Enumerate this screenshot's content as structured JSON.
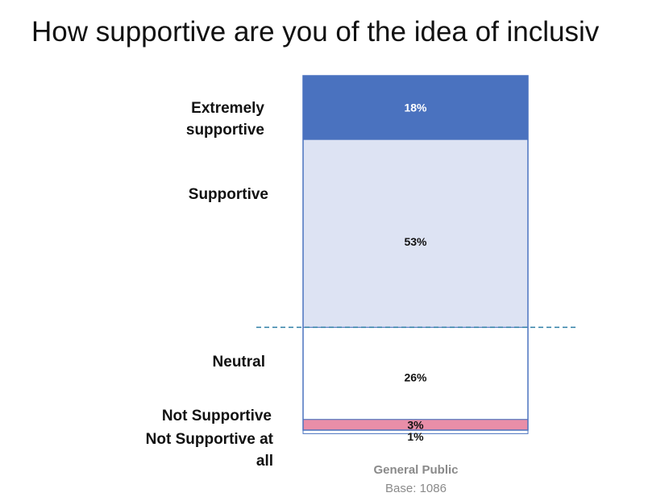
{
  "title": "How supportive are you of the idea of inclusiv",
  "chart_data": {
    "type": "bar",
    "stacked": true,
    "categories": [
      "General Public"
    ],
    "series": [
      {
        "name": "Extremely supportive",
        "values": [
          18
        ],
        "value_label": "18%",
        "color": "#4a72bf",
        "text_color": "#ffffff"
      },
      {
        "name": "Supportive",
        "values": [
          53
        ],
        "value_label": "53%",
        "color": "#dde3f3",
        "text_color": "#111111"
      },
      {
        "name": "Neutral",
        "values": [
          26
        ],
        "value_label": "26%",
        "color": "#ffffff",
        "text_color": "#111111"
      },
      {
        "name": "Not Supportive",
        "values": [
          3
        ],
        "value_label": "3%",
        "color": "#e98ea8",
        "text_color": "#111111"
      },
      {
        "name": "Not Supportive at all",
        "values": [
          1
        ],
        "value_label": "1%",
        "color": "#ffffff",
        "text_color": "#111111"
      }
    ],
    "ylim": [
      0,
      100
    ],
    "bar_label": "General Public",
    "base_label": "Base: 1086",
    "divider_line": {
      "style": "dashed",
      "color": "#2f7fa6"
    },
    "border_color": "#4a72bf"
  }
}
